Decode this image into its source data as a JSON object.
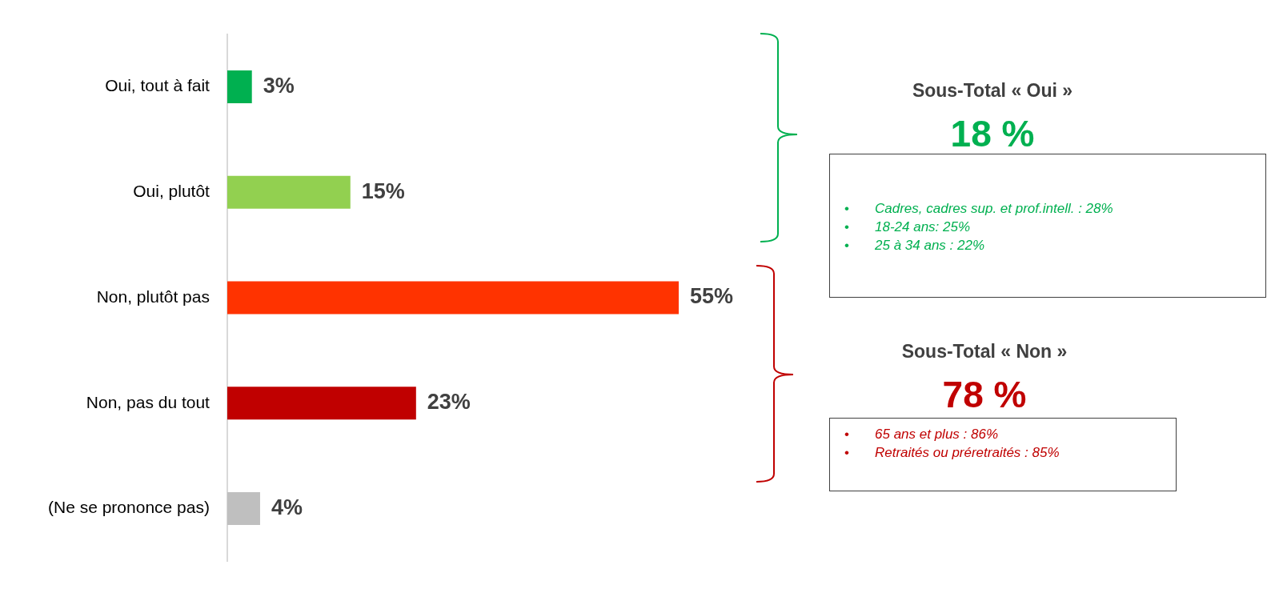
{
  "chart_data": {
    "type": "bar",
    "orientation": "horizontal",
    "categories": [
      "Oui, tout à fait",
      "Oui, plutôt",
      "Non, plutôt pas",
      "Non, pas du tout",
      "(Ne se prononce pas)"
    ],
    "values": [
      3,
      15,
      55,
      23,
      4
    ],
    "colors": [
      "#00b050",
      "#92d050",
      "#ff3300",
      "#c00000",
      "#bfbfbf"
    ],
    "value_labels": [
      "3%",
      "15%",
      "55%",
      "23%",
      "4%"
    ],
    "annotations": [
      "Sous-Total « Oui »",
      "18 %",
      "• Cadres, cadres sup. et prof.intell. : 28%",
      "• 18-24 ans: 25%",
      "• 25 à 34 ans : 22%",
      "Sous-Total « Non »",
      "78 %",
      "• 65 ans et plus : 86%",
      "• Retraités ou préretraités : 85%"
    ]
  }
}
